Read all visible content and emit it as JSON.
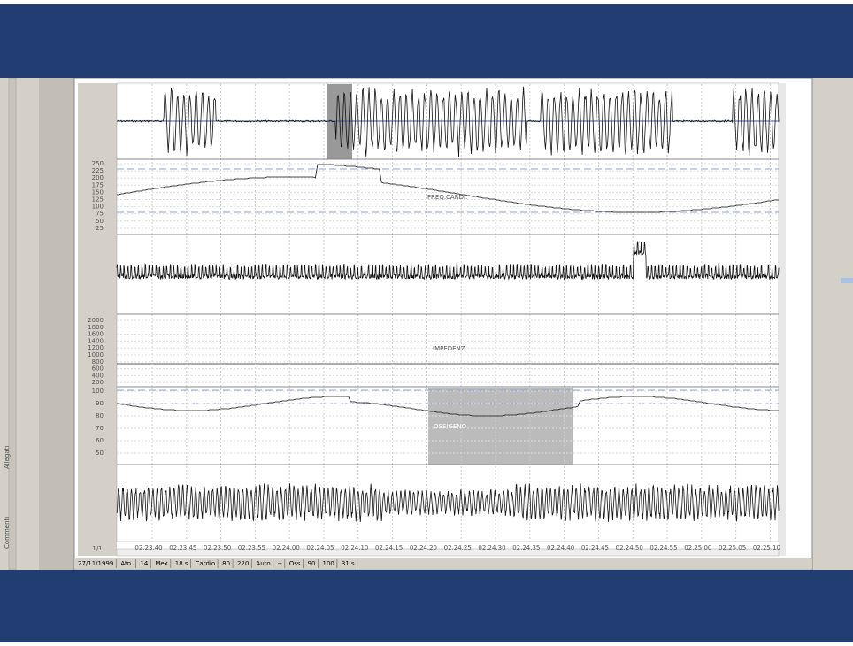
{
  "side_tabs": [
    "Allegati",
    "Commenti"
  ],
  "heart_rate_panel": {
    "label": "FREQ.CARDI.",
    "ticks": [
      "250",
      "225",
      "200",
      "175",
      "150",
      "125",
      "100",
      "75",
      "50",
      "25"
    ]
  },
  "impedance_panel": {
    "label": "IMPEDENZ",
    "ticks": [
      "2000",
      "1800",
      "1600",
      "1400",
      "1200",
      "1000",
      "800",
      "600",
      "400",
      "200"
    ]
  },
  "oxygen_panel": {
    "label": "OSSIGENO",
    "ticks": [
      "100",
      "90",
      "80",
      "70",
      "60",
      "50"
    ]
  },
  "page_indicator": "1/1",
  "time_axis": [
    "02.23.40",
    "02.23.45",
    "02.23.50",
    "02.23.55",
    "02.24.00",
    "02.24.05",
    "02.24.10",
    "02.24.15",
    "02.24.20",
    "02.24.25",
    "02.24.30",
    "02.24.35",
    "02.24.40",
    "02.24.45",
    "02.24.50",
    "02.24.55",
    "02.25.00",
    "02.25.05",
    "02.25.10"
  ],
  "status_bar": [
    "27/11/1999",
    "Atn.",
    "14",
    "Mex",
    "18 s",
    "Cardio",
    "80",
    "220",
    "Auto",
    "--",
    "Oss",
    "90",
    "100",
    "31 s"
  ]
}
